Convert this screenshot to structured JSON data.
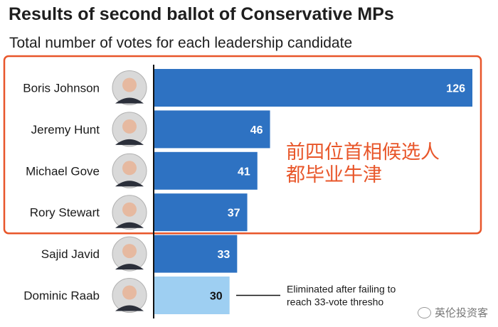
{
  "chart_data": {
    "type": "bar",
    "orientation": "horizontal",
    "title": "Results of second ballot of Conservative MPs",
    "subtitle": "Total number of votes for each leadership candidate",
    "categories": [
      "Boris Johnson",
      "Jeremy Hunt",
      "Michael Gove",
      "Rory Stewart",
      "Sajid Javid",
      "Dominic Raab"
    ],
    "values": [
      126,
      46,
      41,
      37,
      33,
      30
    ],
    "value_labels": [
      "126",
      "46",
      "41",
      "37",
      "33",
      "30"
    ],
    "xlim": [
      0,
      126
    ],
    "grid": false,
    "colors": {
      "bar": "#2e72c2",
      "eliminated_bar": "#9ecff2",
      "highlight_box": "#e8562a",
      "overlay_text": "#e8562a",
      "axis": "#111111"
    },
    "highlighted_categories": [
      "Boris Johnson",
      "Jeremy Hunt",
      "Michael Gove",
      "Rory Stewart"
    ],
    "eliminated_category": "Dominic Raab",
    "annotation": {
      "lines": [
        "Eliminated after failing to",
        "reach 33-vote thresho"
      ]
    },
    "overlay_text": [
      "前四位首相候选人",
      "都毕业牛津"
    ]
  },
  "watermark": {
    "text": "英伦投资客",
    "icon": "wechat-icon"
  }
}
